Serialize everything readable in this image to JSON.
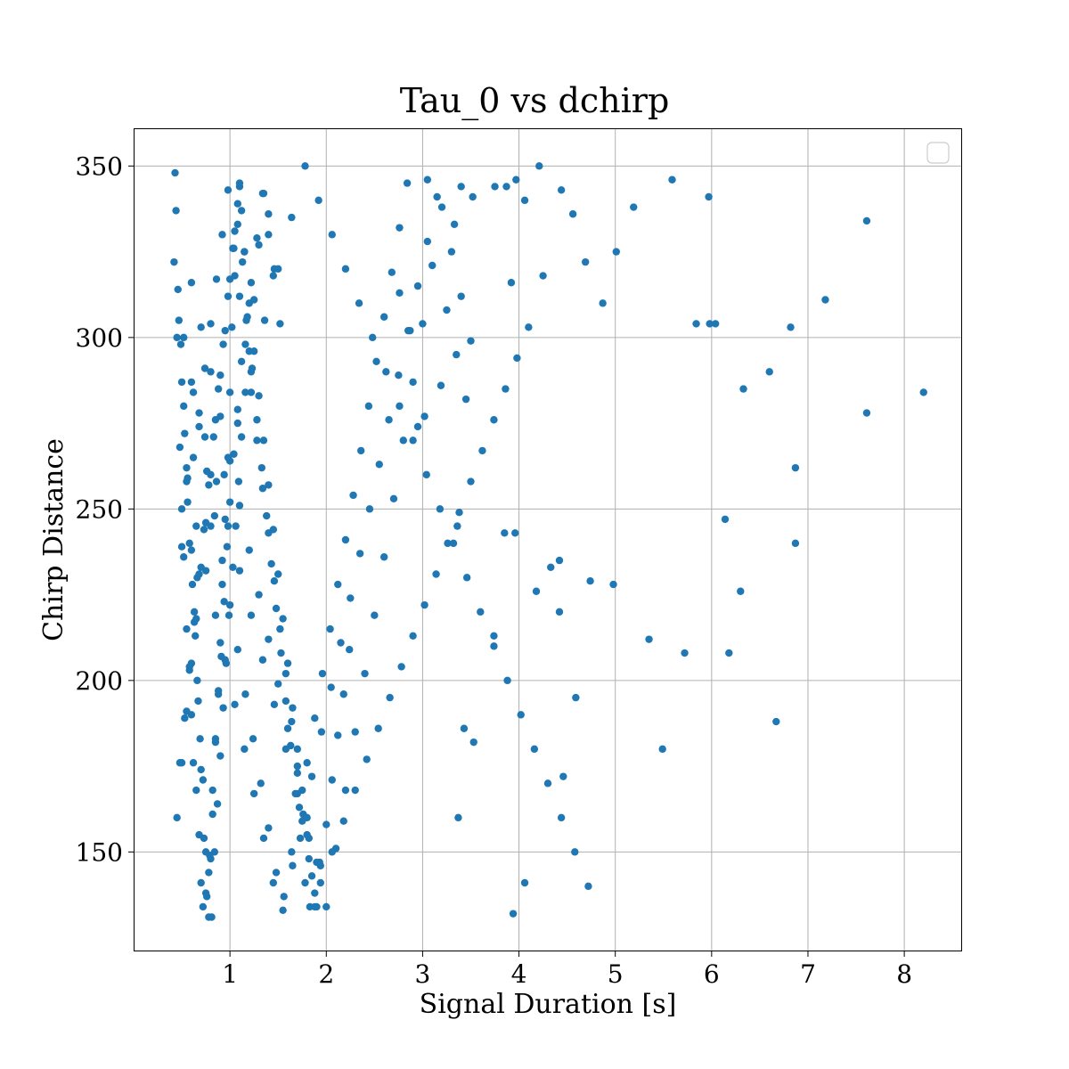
{
  "chart_data": {
    "type": "scatter",
    "title": "Tau_0 vs dchirp",
    "xlabel": "Signal Duration [s]",
    "ylabel": "Chirp Distance",
    "xlim": [
      0.0,
      8.6
    ],
    "ylim": [
      121,
      361
    ],
    "xticks": [
      1,
      2,
      3,
      4,
      5,
      6,
      7,
      8
    ],
    "yticks": [
      150,
      200,
      250,
      300,
      350
    ],
    "grid": true,
    "legend": {
      "position": "top-right",
      "entries": []
    },
    "colors": {
      "points": "#1f77b4",
      "grid": "#b0b0b0",
      "frame": "#000000"
    },
    "series": [
      {
        "x": [
          0.42,
          0.45,
          0.48,
          0.5,
          0.52,
          0.55,
          0.58,
          0.6,
          0.62,
          0.65,
          0.68,
          0.7,
          0.72,
          0.75,
          0.78,
          0.8,
          0.82,
          0.85,
          0.88,
          0.9,
          0.92,
          0.95,
          0.98,
          1.0,
          1.02,
          1.05,
          1.08,
          1.1,
          1.12,
          1.15,
          0.44,
          0.47,
          0.5,
          0.53,
          0.56,
          0.6,
          0.63,
          0.66,
          0.69,
          0.72,
          0.75,
          0.78,
          0.81,
          0.84,
          0.87,
          0.9,
          0.93,
          0.96,
          0.99,
          1.03,
          1.06,
          1.09,
          1.12,
          1.16,
          1.2,
          1.25,
          1.3,
          1.35,
          1.4,
          1.45,
          0.43,
          0.46,
          0.49,
          0.52,
          0.55,
          0.58,
          0.61,
          0.64,
          0.67,
          0.7,
          0.73,
          0.76,
          0.79,
          0.82,
          0.85,
          0.88,
          0.91,
          0.94,
          0.97,
          1.0,
          1.04,
          1.08,
          1.12,
          1.17,
          1.22,
          1.28,
          1.34,
          1.4,
          1.46,
          1.52,
          0.45,
          0.5,
          0.55,
          0.6,
          0.65,
          0.7,
          0.75,
          0.8,
          0.85,
          0.9,
          0.95,
          1.0,
          1.05,
          1.1,
          1.15,
          1.2,
          1.25,
          1.3,
          1.35,
          1.4,
          1.45,
          1.5,
          1.55,
          1.6,
          1.65,
          1.7,
          1.75,
          1.8,
          1.85,
          1.9,
          0.48,
          0.53,
          0.58,
          0.63,
          0.68,
          0.73,
          0.78,
          0.83,
          0.88,
          0.93,
          0.98,
          1.03,
          1.08,
          1.13,
          1.18,
          1.23,
          1.28,
          1.33,
          1.38,
          1.43,
          1.48,
          1.53,
          1.58,
          1.63,
          1.68,
          1.73,
          1.78,
          1.83,
          1.88,
          1.93,
          0.5,
          0.56,
          0.62,
          0.68,
          0.74,
          0.8,
          0.86,
          0.92,
          0.98,
          1.04,
          1.1,
          1.16,
          1.22,
          1.28,
          1.34,
          1.4,
          1.46,
          1.52,
          1.58,
          1.64,
          1.7,
          1.76,
          1.82,
          1.88,
          1.94,
          2.0,
          2.06,
          2.12,
          2.18,
          2.24,
          0.52,
          0.6,
          0.68,
          0.76,
          0.84,
          0.92,
          1.0,
          1.08,
          1.16,
          1.24,
          1.32,
          1.4,
          1.48,
          1.56,
          1.64,
          1.72,
          1.8,
          1.88,
          1.96,
          2.04,
          2.12,
          2.2,
          2.28,
          2.36,
          2.44,
          2.52,
          2.6,
          2.68,
          2.76,
          2.84,
          0.55,
          0.65,
          0.75,
          0.85,
          0.95,
          1.05,
          1.15,
          1.25,
          1.35,
          1.45,
          1.55,
          1.65,
          1.75,
          1.85,
          1.95,
          2.05,
          2.15,
          2.25,
          2.35,
          2.45,
          2.55,
          2.65,
          2.75,
          2.85,
          2.95,
          3.05,
          3.15,
          3.25,
          3.35,
          3.45,
          0.6,
          0.7,
          0.8,
          0.9,
          1.0,
          1.1,
          1.2,
          1.3,
          1.4,
          1.5,
          1.6,
          1.7,
          1.8,
          1.9,
          2.0,
          2.1,
          2.2,
          2.3,
          2.4,
          2.5,
          2.6,
          2.7,
          2.8,
          2.9,
          3.0,
          3.1,
          3.2,
          3.3,
          3.4,
          3.5,
          0.62,
          0.74,
          0.86,
          0.98,
          1.1,
          1.22,
          1.34,
          1.46,
          1.58,
          1.7,
          1.82,
          1.94,
          2.06,
          2.18,
          2.3,
          2.42,
          2.54,
          2.66,
          2.78,
          2.9,
          3.02,
          3.14,
          3.26,
          3.38,
          3.5,
          3.62,
          3.74,
          3.86,
          3.98,
          4.1,
          0.66,
          0.8,
          0.94,
          1.08,
          1.22,
          1.36,
          1.5,
          1.64,
          1.78,
          1.92,
          2.06,
          2.2,
          2.34,
          2.48,
          2.62,
          2.76,
          2.9,
          3.04,
          3.18,
          3.32,
          3.46,
          3.6,
          3.74,
          3.88,
          4.02,
          4.16,
          4.3,
          4.44,
          4.58,
          4.72,
          3.05,
          3.33,
          3.4,
          3.52,
          3.75,
          3.87,
          3.97,
          4.06,
          4.21,
          4.44,
          4.56,
          4.69,
          4.87,
          5.01,
          5.19,
          5.59,
          5.97,
          6.04,
          5.84,
          5.98,
          6.6,
          6.33,
          6.82,
          7.18,
          7.61,
          8.2,
          7.61,
          6.87,
          6.87,
          6.14,
          6.3,
          5.35,
          5.72,
          6.18,
          4.98,
          4.74,
          4.33,
          4.42,
          4.59,
          4.42,
          3.96,
          3.85,
          3.74,
          3.53,
          3.43,
          3.37,
          3.36,
          4.18,
          4.06,
          3.94,
          4.46,
          5.49,
          6.67,
          4.25,
          3.92,
          3.19,
          3.02,
          2.95,
          2.87,
          2.76
        ],
        "y": [
          322,
          300,
          268,
          250,
          236,
          215,
          204,
          190,
          176,
          168,
          155,
          141,
          134,
          138,
          131,
          148,
          161,
          183,
          197,
          211,
          228,
          247,
          265,
          284,
          303,
          318,
          333,
          344,
          337,
          325,
          337,
          305,
          287,
          272,
          259,
          238,
          220,
          200,
          183,
          171,
          150,
          144,
          131,
          150,
          164,
          178,
          192,
          205,
          219,
          233,
          245,
          258,
          271,
          284,
          296,
          311,
          327,
          342,
          330,
          318,
          348,
          314,
          298,
          280,
          262,
          240,
          228,
          213,
          194,
          174,
          154,
          137,
          149,
          168,
          182,
          196,
          207,
          223,
          239,
          252,
          266,
          279,
          293,
          305,
          316,
          329,
          342,
          336,
          320,
          304,
          160,
          176,
          191,
          205,
          218,
          233,
          246,
          260,
          276,
          289,
          302,
          317,
          331,
          345,
          325,
          310,
          296,
          283,
          270,
          257,
          244,
          231,
          218,
          205,
          192,
          180,
          168,
          155,
          143,
          134,
          176,
          189,
          203,
          217,
          231,
          244,
          257,
          271,
          285,
          298,
          312,
          326,
          339,
          322,
          306,
          291,
          276,
          262,
          248,
          234,
          221,
          208,
          194,
          181,
          167,
          154,
          141,
          134,
          138,
          147,
          239,
          252,
          265,
          278,
          291,
          304,
          317,
          330,
          343,
          326,
          312,
          298,
          284,
          270,
          256,
          243,
          229,
          215,
          202,
          188,
          175,
          161,
          148,
          134,
          146,
          158,
          171,
          184,
          196,
          209,
          300,
          287,
          274,
          261,
          248,
          235,
          222,
          209,
          196,
          183,
          170,
          157,
          144,
          137,
          150,
          163,
          176,
          189,
          202,
          215,
          228,
          241,
          254,
          267,
          280,
          293,
          306,
          319,
          332,
          345,
          258,
          245,
          232,
          219,
          206,
          193,
          180,
          167,
          154,
          141,
          133,
          146,
          159,
          172,
          185,
          198,
          211,
          224,
          237,
          250,
          263,
          276,
          289,
          302,
          315,
          328,
          341,
          308,
          295,
          282,
          316,
          303,
          290,
          277,
          264,
          251,
          238,
          225,
          212,
          199,
          186,
          173,
          160,
          147,
          134,
          151,
          168,
          185,
          202,
          219,
          236,
          253,
          270,
          287,
          304,
          321,
          338,
          325,
          312,
          299,
          284,
          271,
          258,
          245,
          232,
          219,
          206,
          193,
          180,
          167,
          154,
          141,
          150,
          159,
          168,
          177,
          186,
          195,
          204,
          213,
          222,
          231,
          240,
          249,
          258,
          267,
          276,
          285,
          294,
          303,
          230,
          245,
          260,
          275,
          290,
          305,
          320,
          335,
          350,
          340,
          330,
          320,
          310,
          300,
          290,
          280,
          270,
          260,
          250,
          240,
          230,
          220,
          210,
          200,
          190,
          180,
          170,
          160,
          150,
          140,
          346,
          333,
          344,
          341,
          344,
          344,
          346,
          340,
          350,
          343,
          336,
          322,
          310,
          325,
          338,
          346,
          341,
          304,
          304,
          304,
          290,
          285,
          303,
          311,
          334,
          284,
          278,
          262,
          240,
          247,
          226,
          212,
          208,
          208,
          228,
          229,
          233,
          235,
          195,
          220,
          243,
          243,
          213,
          182,
          186,
          160,
          245,
          226,
          141,
          132,
          172,
          180,
          188,
          318,
          316,
          286,
          277,
          274,
          302,
          313
        ]
      }
    ]
  }
}
